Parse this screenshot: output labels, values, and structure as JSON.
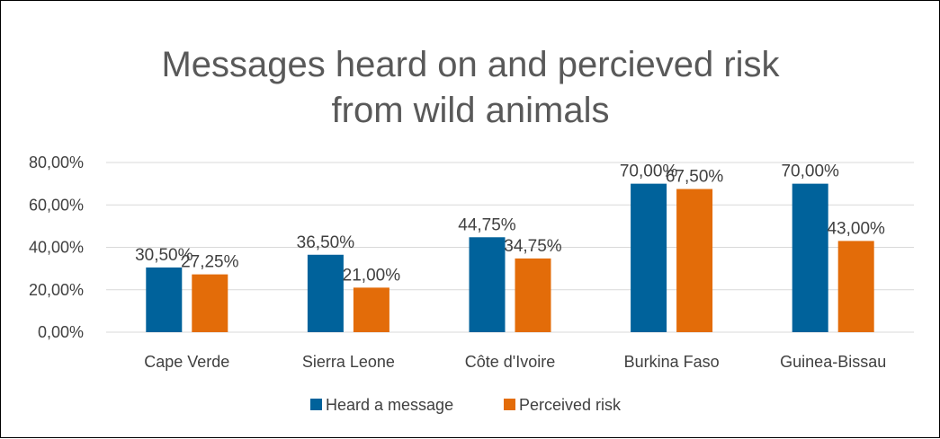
{
  "chart_data": {
    "type": "bar",
    "title_lines": [
      "Messages heard on and percieved risk",
      "from wild animals"
    ],
    "categories": [
      "Cape Verde",
      "Sierra Leone",
      "Côte d'Ivoire",
      "Burkina Faso",
      "Guinea-Bissau"
    ],
    "series": [
      {
        "name": "Heard a message",
        "color": "#00629b",
        "values": [
          30.5,
          36.5,
          44.75,
          70.0,
          70.0
        ],
        "labels": [
          "30,50%",
          "36,50%",
          "44,75%",
          "70,00%",
          "70,00%"
        ]
      },
      {
        "name": "Perceived risk",
        "color": "#e36c09",
        "values": [
          27.25,
          21.0,
          34.75,
          67.5,
          43.0
        ],
        "labels": [
          "27,25%",
          "21,00%",
          "34,75%",
          "67,50%",
          "43,00%"
        ]
      }
    ],
    "ylim": [
      0,
      80
    ],
    "yticks": [
      0,
      20,
      40,
      60,
      80
    ],
    "ytick_labels": [
      "0,00%",
      "20,00%",
      "40,00%",
      "60,00%",
      "80,00%"
    ],
    "grid": true,
    "gridline_color": "#d9d9d9",
    "legend_position": "bottom",
    "xlabel": "",
    "ylabel": ""
  }
}
